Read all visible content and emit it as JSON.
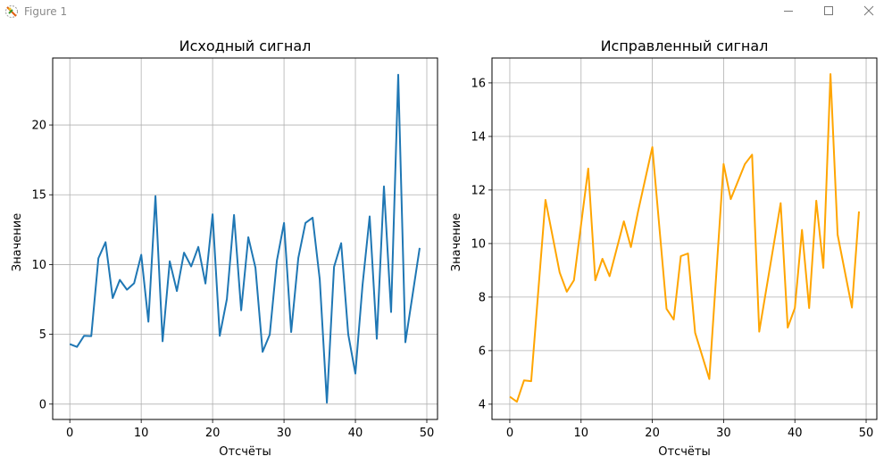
{
  "window": {
    "title": "Figure 1",
    "controls": [
      "minimize",
      "maximize",
      "close"
    ]
  },
  "chart_data": [
    {
      "type": "line",
      "title": "Исходный сигнал",
      "xlabel": "Отсчёты",
      "ylabel": "Значение",
      "xlim": [
        -2.4,
        51.5
      ],
      "ylim": [
        -1.1,
        24.8
      ],
      "xticks": [
        0,
        10,
        20,
        30,
        40,
        50
      ],
      "yticks": [
        0,
        5,
        10,
        15,
        20
      ],
      "grid": true,
      "color": "#1f77b4",
      "x": [
        0,
        1,
        2,
        3,
        4,
        5,
        6,
        7,
        8,
        9,
        10,
        11,
        12,
        13,
        14,
        15,
        16,
        17,
        18,
        19,
        20,
        21,
        22,
        23,
        24,
        25,
        26,
        27,
        28,
        29,
        30,
        31,
        32,
        33,
        34,
        35,
        36,
        37,
        38,
        39,
        40,
        41,
        42,
        43,
        44,
        45,
        46,
        47,
        48,
        49
      ],
      "y": [
        4.3,
        4.1,
        4.9,
        4.87,
        10.45,
        11.6,
        7.6,
        8.9,
        8.2,
        8.66,
        10.7,
        5.9,
        14.9,
        4.5,
        10.23,
        8.1,
        10.85,
        9.87,
        11.26,
        8.64,
        13.6,
        4.89,
        7.53,
        13.55,
        6.72,
        11.96,
        9.77,
        3.74,
        4.98,
        10.28,
        12.98,
        5.17,
        10.47,
        12.98,
        13.36,
        8.94,
        0.1,
        9.83,
        11.53,
        5.0,
        2.19,
        8.51,
        13.45,
        4.68,
        15.6,
        6.6,
        23.6,
        4.43,
        7.8,
        11.19
      ]
    },
    {
      "type": "line",
      "title": "Исправленный сигнал",
      "xlabel": "Отсчёты",
      "ylabel": "Значение",
      "xlim": [
        -2.5,
        51.5
      ],
      "ylim": [
        3.43,
        16.93
      ],
      "xticks": [
        0,
        10,
        20,
        30,
        40,
        50
      ],
      "yticks": [
        4,
        6,
        8,
        10,
        12,
        14,
        16
      ],
      "grid": true,
      "color": "#ffa500",
      "x": [
        0,
        1,
        2,
        3,
        5,
        7,
        8,
        9,
        11,
        12,
        13,
        14,
        16,
        17,
        18,
        20,
        22,
        23,
        24,
        25,
        26,
        28,
        30,
        31,
        33,
        34,
        35,
        38,
        39,
        40,
        41,
        42,
        43,
        44,
        45,
        46,
        48,
        49
      ],
      "y": [
        4.28,
        4.09,
        4.89,
        4.86,
        11.63,
        8.92,
        8.2,
        8.63,
        12.8,
        8.63,
        9.43,
        8.78,
        10.83,
        9.87,
        11.2,
        13.6,
        7.56,
        7.16,
        9.53,
        9.63,
        6.67,
        4.94,
        12.97,
        11.66,
        12.97,
        13.32,
        6.71,
        11.51,
        6.86,
        7.59,
        10.51,
        7.59,
        11.6,
        9.09,
        16.33,
        10.33,
        7.61,
        11.2
      ]
    }
  ]
}
